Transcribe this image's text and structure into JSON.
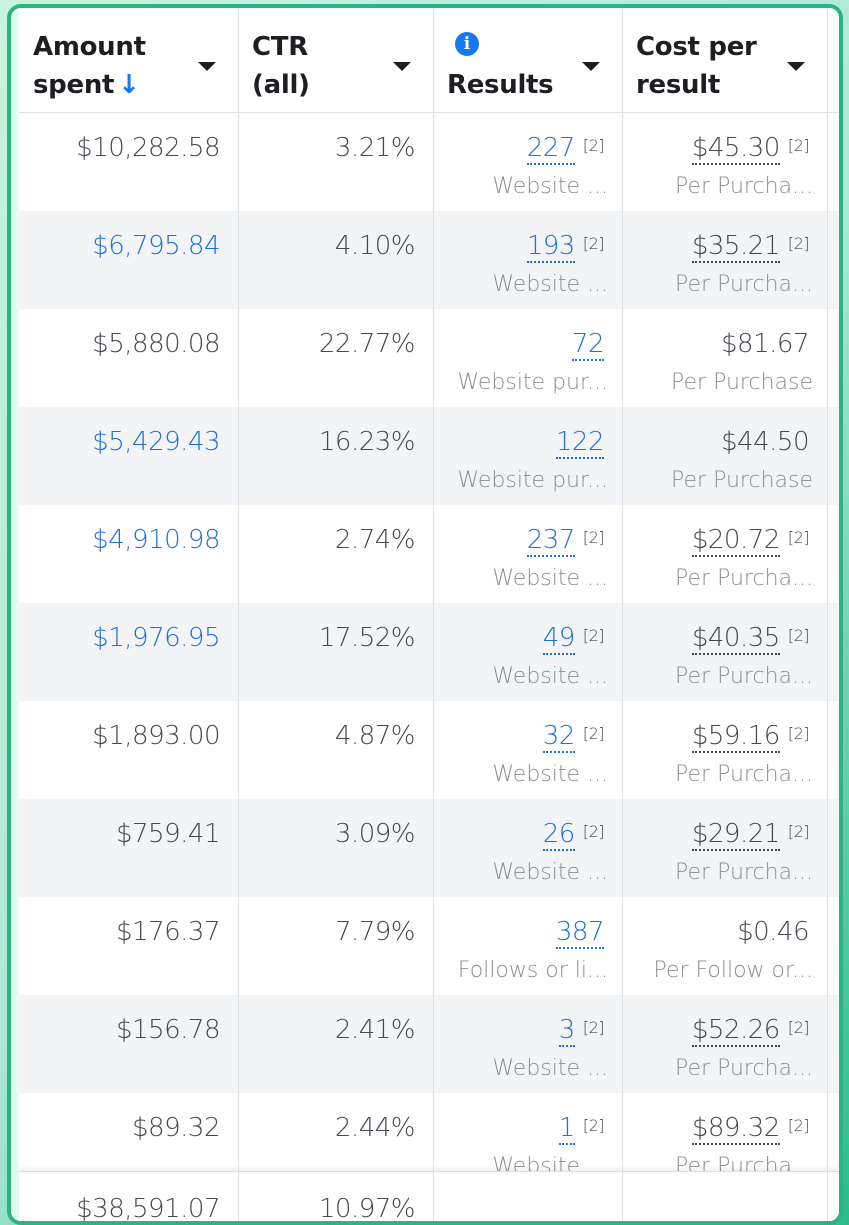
{
  "columns": [
    {
      "line1": "Amount",
      "line2": "spent",
      "sort_indicator": "↓",
      "has_info": false
    },
    {
      "line1": "CTR",
      "line2": "(all)",
      "sort_indicator": "",
      "has_info": false
    },
    {
      "line1": "",
      "line2": "Results",
      "sort_indicator": "",
      "has_info": true,
      "info_glyph": "i"
    },
    {
      "line1": "Cost per",
      "line2": "result",
      "sort_indicator": "",
      "has_info": false
    }
  ],
  "rows": [
    {
      "amount": "$10,282.58",
      "amount_link": false,
      "ctr": "3.21%",
      "results": "227",
      "results_ref": "[2]",
      "results_sub": "Website ...",
      "cost": "$45.30",
      "cost_ref": "[2]",
      "cost_underlined": true,
      "cost_sub": "Per Purcha..."
    },
    {
      "amount": "$6,795.84",
      "amount_link": true,
      "ctr": "4.10%",
      "results": "193",
      "results_ref": "[2]",
      "results_sub": "Website ...",
      "cost": "$35.21",
      "cost_ref": "[2]",
      "cost_underlined": true,
      "cost_sub": "Per Purcha..."
    },
    {
      "amount": "$5,880.08",
      "amount_link": false,
      "ctr": "22.77%",
      "results": "72",
      "results_ref": "",
      "results_sub": "Website pur...",
      "cost": "$81.67",
      "cost_ref": "",
      "cost_underlined": false,
      "cost_sub": "Per Purchase"
    },
    {
      "amount": "$5,429.43",
      "amount_link": true,
      "ctr": "16.23%",
      "results": "122",
      "results_ref": "",
      "results_sub": "Website pur...",
      "cost": "$44.50",
      "cost_ref": "",
      "cost_underlined": false,
      "cost_sub": "Per Purchase"
    },
    {
      "amount": "$4,910.98",
      "amount_link": true,
      "ctr": "2.74%",
      "results": "237",
      "results_ref": "[2]",
      "results_sub": "Website ...",
      "cost": "$20.72",
      "cost_ref": "[2]",
      "cost_underlined": true,
      "cost_sub": "Per Purcha..."
    },
    {
      "amount": "$1,976.95",
      "amount_link": true,
      "ctr": "17.52%",
      "results": "49",
      "results_ref": "[2]",
      "results_sub": "Website ...",
      "cost": "$40.35",
      "cost_ref": "[2]",
      "cost_underlined": true,
      "cost_sub": "Per Purcha..."
    },
    {
      "amount": "$1,893.00",
      "amount_link": false,
      "ctr": "4.87%",
      "results": "32",
      "results_ref": "[2]",
      "results_sub": "Website ...",
      "cost": "$59.16",
      "cost_ref": "[2]",
      "cost_underlined": true,
      "cost_sub": "Per Purcha..."
    },
    {
      "amount": "$759.41",
      "amount_link": false,
      "ctr": "3.09%",
      "results": "26",
      "results_ref": "[2]",
      "results_sub": "Website ...",
      "cost": "$29.21",
      "cost_ref": "[2]",
      "cost_underlined": true,
      "cost_sub": "Per Purcha..."
    },
    {
      "amount": "$176.37",
      "amount_link": false,
      "ctr": "7.79%",
      "results": "387",
      "results_ref": "",
      "results_sub": "Follows or li...",
      "cost": "$0.46",
      "cost_ref": "",
      "cost_underlined": false,
      "cost_sub": "Per Follow or..."
    },
    {
      "amount": "$156.78",
      "amount_link": false,
      "ctr": "2.41%",
      "results": "3",
      "results_ref": "[2]",
      "results_sub": "Website ...",
      "cost": "$52.26",
      "cost_ref": "[2]",
      "cost_underlined": true,
      "cost_sub": "Per Purcha..."
    },
    {
      "amount": "$89.32",
      "amount_link": false,
      "ctr": "2.44%",
      "results": "1",
      "results_ref": "[2]",
      "results_sub": "Website ...",
      "cost": "$89.32",
      "cost_ref": "[2]",
      "cost_underlined": true,
      "cost_sub": "Per Purcha..."
    }
  ],
  "totals": {
    "amount": "$38,591.07",
    "ctr": "10.97%",
    "results": "",
    "cost": ""
  },
  "colors": {
    "link": "#216fdb",
    "accent": "#1877f2",
    "frame": "#29b486",
    "alt_row": "#f2f4f6"
  }
}
